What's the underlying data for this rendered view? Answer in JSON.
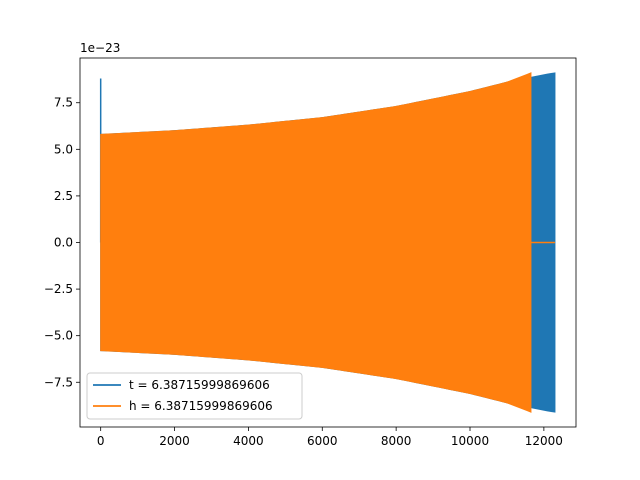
{
  "chart_data": {
    "type": "line",
    "title": "",
    "xlabel": "",
    "ylabel": "",
    "offset_text": "1e−23",
    "xlim": [
      -560,
      12870
    ],
    "ylim": [
      -9.9,
      9.9
    ],
    "grid": false,
    "legend_placement": "lower-left",
    "x_ticks": [
      {
        "value": 0,
        "label": "0"
      },
      {
        "value": 2000,
        "label": "2000"
      },
      {
        "value": 4000,
        "label": "4000"
      },
      {
        "value": 6000,
        "label": "6000"
      },
      {
        "value": 8000,
        "label": "8000"
      },
      {
        "value": 10000,
        "label": "10000"
      },
      {
        "value": 12000,
        "label": "12000"
      }
    ],
    "y_ticks": [
      {
        "value": -7.5,
        "label": "−7.5"
      },
      {
        "value": -5.0,
        "label": "−5.0"
      },
      {
        "value": -2.5,
        "label": "−2.5"
      },
      {
        "value": 0.0,
        "label": "0.0"
      },
      {
        "value": 2.5,
        "label": "2.5"
      },
      {
        "value": 5.0,
        "label": "5.0"
      },
      {
        "value": 7.5,
        "label": "7.5"
      }
    ],
    "series": [
      {
        "name": "t = 6.38715999869606",
        "color": "#1f77b4",
        "style": "oscillating-envelope",
        "spike": {
          "x": 0,
          "max": 8.8
        },
        "envelope": [
          [
            0,
            5.8
          ],
          [
            2000,
            6.0
          ],
          [
            4000,
            6.3
          ],
          [
            6000,
            6.7
          ],
          [
            8000,
            7.3
          ],
          [
            10000,
            8.1
          ],
          [
            11000,
            8.6
          ],
          [
            12000,
            9.0
          ],
          [
            12300,
            9.1
          ]
        ],
        "end_x": 12300
      },
      {
        "name": "h = 6.38715999869606",
        "color": "#ff7f0e",
        "style": "oscillating-envelope",
        "envelope": [
          [
            0,
            5.8
          ],
          [
            2000,
            6.0
          ],
          [
            4000,
            6.3
          ],
          [
            6000,
            6.7
          ],
          [
            8000,
            7.3
          ],
          [
            10000,
            8.1
          ],
          [
            11000,
            8.6
          ],
          [
            11650,
            9.1
          ]
        ],
        "end_x": 11650,
        "tail": {
          "from_x": 11650,
          "to_x": 12300,
          "y": 0
        }
      }
    ]
  }
}
